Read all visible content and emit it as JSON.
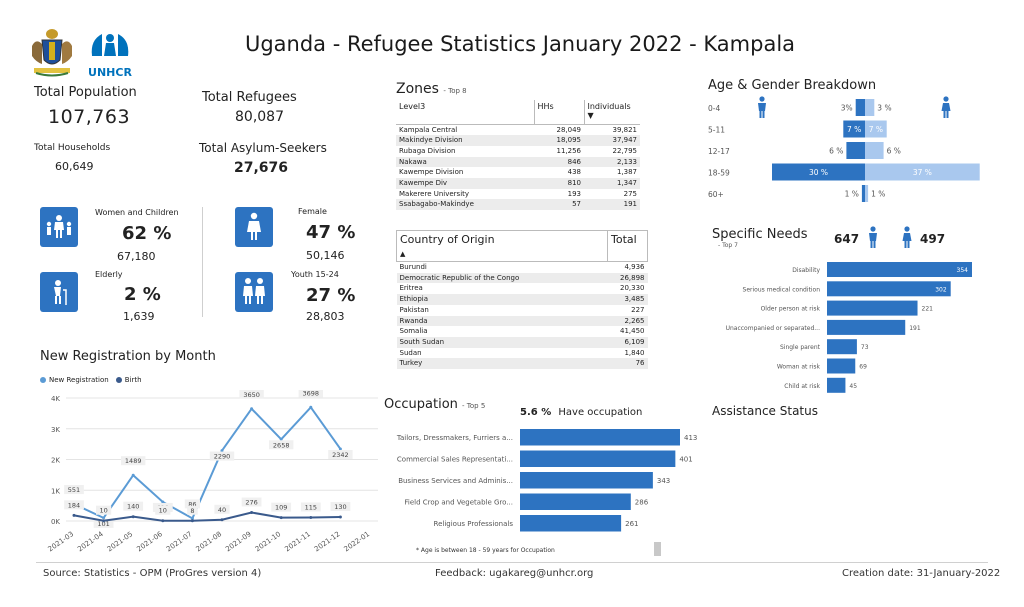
{
  "header": {
    "title": "Uganda - Refugee Statistics January 2022 - Kampala",
    "unhcr_logo": "UNHCR"
  },
  "kpis": {
    "total_population_label": "Total Population",
    "total_population": "107,763",
    "total_households_label": "Total Households",
    "total_households": "60,649",
    "total_refugees_label": "Total Refugees",
    "total_refugees": "80,087",
    "total_asylum_label": "Total Asylum-Seekers",
    "total_asylum": "27,676"
  },
  "demographics": {
    "women_children": {
      "label": "Women and Children",
      "pct": "62 %",
      "count": "67,180",
      "fill": 0.62
    },
    "elderly": {
      "label": "Elderly",
      "pct": "2 %",
      "count": "1,639",
      "fill": 0.02
    },
    "female": {
      "label": "Female",
      "pct": "47 %",
      "count": "50,146",
      "fill": 0.47
    },
    "youth": {
      "label": "Youth 15-24",
      "pct": "27 %",
      "count": "28,803",
      "fill": 0.27
    }
  },
  "zones": {
    "title": "Zones",
    "subtitle": "- Top 8",
    "headers": [
      "Level3",
      "HHs",
      "Individuals"
    ],
    "rows": [
      [
        "Kampala Central",
        "28,049",
        "39,821"
      ],
      [
        "Makindye Division",
        "18,095",
        "37,947"
      ],
      [
        "Rubaga Division",
        "11,256",
        "22,795"
      ],
      [
        "Nakawa",
        "846",
        "2,133"
      ],
      [
        "Kawempe Division",
        "438",
        "1,387"
      ],
      [
        "Kawempe Div",
        "810",
        "1,347"
      ],
      [
        "Makerere University",
        "193",
        "275"
      ],
      [
        "Ssabagabo-Makindye",
        "57",
        "191"
      ]
    ]
  },
  "origin": {
    "headers": [
      "Country of Origin",
      "Total"
    ],
    "rows": [
      [
        "Burundi",
        "4,936"
      ],
      [
        "Democratic Republic of the Congo",
        "26,898"
      ],
      [
        "Eritrea",
        "20,330"
      ],
      [
        "Ethiopia",
        "3,485"
      ],
      [
        "Pakistan",
        "227"
      ],
      [
        "Rwanda",
        "2,265"
      ],
      [
        "Somalia",
        "41,450"
      ],
      [
        "South Sudan",
        "6,109"
      ],
      [
        "Sudan",
        "1,840"
      ],
      [
        "Turkey",
        "76"
      ]
    ]
  },
  "registration": {
    "title": "New Registration by Month",
    "legend": [
      "New Registration",
      "Birth"
    ],
    "colors": {
      "new": "#5b9bd5",
      "birth": "#3a5a8c"
    }
  },
  "age_gender": {
    "title": "Age & Gender Breakdown",
    "colors": {
      "male": "#2d73c1",
      "female": "#a9c8ee"
    }
  },
  "specific_needs": {
    "title": "Specific Needs",
    "subtitle": "- Top 7",
    "male_count": "647",
    "female_count": "497"
  },
  "occupation": {
    "title": "Occupation",
    "subtitle": "- Top 5",
    "have_pct": "5.6 %",
    "have_label": "Have occupation",
    "note": "* Age is between 18 - 59 years for Occupation"
  },
  "assistance": {
    "title": "Assistance Status"
  },
  "footer": {
    "source": "Source: Statistics - OPM (ProGres version 4)",
    "feedback": "Feedback: ugakareg@unhcr.org",
    "created": "Creation date: 31-January-2022"
  },
  "chart_data": [
    {
      "type": "line",
      "title": "New Registration by Month",
      "x": [
        "2021-03",
        "2021-04",
        "2021-05",
        "2021-06",
        "2021-07",
        "2021-08",
        "2021-09",
        "2021-10",
        "2021-11",
        "2021-12",
        "2022-01"
      ],
      "ylim": [
        0,
        4000
      ],
      "yticks": [
        "0K",
        "1K",
        "2K",
        "3K",
        "4K"
      ],
      "series": [
        {
          "name": "New Registration",
          "values": [
            551,
            101,
            1489,
            619,
            86,
            2290,
            3650,
            2658,
            3698,
            2342,
            null
          ]
        },
        {
          "name": "Birth",
          "values": [
            184,
            10,
            140,
            10,
            8,
            40,
            276,
            109,
            115,
            130,
            null
          ]
        }
      ]
    },
    {
      "type": "bar",
      "title": "Age & Gender Breakdown",
      "orientation": "diverging",
      "categories": [
        "0-4",
        "5-11",
        "12-17",
        "18-59",
        "60+"
      ],
      "series": [
        {
          "name": "male",
          "values": [
            3,
            7,
            6,
            30,
            1
          ],
          "labels": [
            "3%",
            "7 %",
            "6 %",
            "30 %",
            "1 %"
          ]
        },
        {
          "name": "female",
          "values": [
            3,
            7,
            6,
            37,
            1
          ],
          "labels": [
            "3 %",
            "7 %",
            "6 %",
            "37 %",
            "1 %"
          ]
        }
      ]
    },
    {
      "type": "bar",
      "title": "Specific Needs",
      "orientation": "horizontal",
      "categories": [
        "Disability",
        "Serious medical condition",
        "Older person at risk",
        "Unaccompanied or separated...",
        "Single parent",
        "Woman at risk",
        "Child at risk"
      ],
      "values": [
        354,
        302,
        221,
        191,
        73,
        69,
        45
      ]
    },
    {
      "type": "bar",
      "title": "Occupation",
      "orientation": "horizontal",
      "categories": [
        "Tailors, Dressmakers, Furriers a...",
        "Commercial Sales Representati...",
        "Business Services and Adminis...",
        "Field Crop and Vegetable Gro...",
        "Religious Professionals"
      ],
      "values": [
        413,
        401,
        343,
        286,
        261
      ]
    }
  ]
}
